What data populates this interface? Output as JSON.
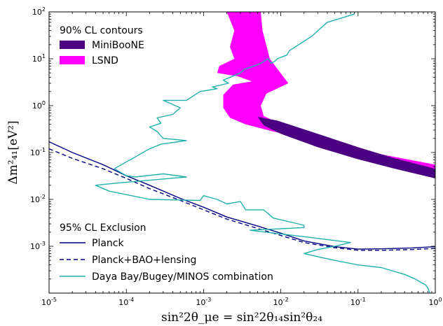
{
  "chart_data": {
    "type": "line",
    "xscale": "log",
    "yscale": "log",
    "xlim": [
      1e-05,
      1
    ],
    "ylim": [
      0.0001,
      100
    ],
    "x_ticks": [
      {
        "value": 1e-05,
        "base": "10",
        "exp": "-5"
      },
      {
        "value": 0.0001,
        "base": "10",
        "exp": "-4"
      },
      {
        "value": 0.001,
        "base": "10",
        "exp": "-3"
      },
      {
        "value": 0.01,
        "base": "10",
        "exp": "-2"
      },
      {
        "value": 0.1,
        "base": "10",
        "exp": "-1"
      },
      {
        "value": 1,
        "base": "10",
        "exp": "0"
      }
    ],
    "y_ticks": [
      {
        "value": 0.001,
        "base": "10",
        "exp": "-3"
      },
      {
        "value": 0.01,
        "base": "10",
        "exp": "-2"
      },
      {
        "value": 0.1,
        "base": "10",
        "exp": "-1"
      },
      {
        "value": 1,
        "base": "10",
        "exp": "0"
      },
      {
        "value": 10,
        "base": "10",
        "exp": "1"
      },
      {
        "value": 100,
        "base": "10",
        "exp": "2"
      }
    ],
    "xlabel": "sin²2θ_μe = sin²2θ₁₄sin²θ₂₄",
    "ylabel": "Δm²₄₁[eV²]",
    "legend_contours": {
      "title": "90% CL contours",
      "placement": "upper-left",
      "entries": [
        {
          "name": "MiniBooNE",
          "color": "#4b0082"
        },
        {
          "name": "LSND",
          "color": "#ff00ff"
        }
      ]
    },
    "legend_exclusion": {
      "title": "95% CL Exclusion",
      "placement": "lower-left",
      "entries": [
        {
          "name": "Planck",
          "color": "#000080",
          "style": "solid"
        },
        {
          "name": "Planck+BAO+lensing",
          "color": "#000080",
          "style": "dashed"
        },
        {
          "name": "Daya Bay/Bugey/MINOS combination",
          "color": "#20b2aa",
          "style": "solid"
        }
      ]
    },
    "regions": [
      {
        "name": "LSND",
        "color": "#ff00ff",
        "points": [
          [
            0.002,
            100
          ],
          [
            0.0055,
            100
          ],
          [
            0.0058,
            40
          ],
          [
            0.0072,
            10
          ],
          [
            0.0125,
            3
          ],
          [
            0.0065,
            1.8
          ],
          [
            0.0055,
            1
          ],
          [
            0.006,
            0.6
          ],
          [
            0.012,
            0.35
          ],
          [
            0.05,
            0.15
          ],
          [
            0.15,
            0.1
          ],
          [
            1,
            0.055
          ],
          [
            1,
            0.04
          ],
          [
            0.3,
            0.07
          ],
          [
            0.08,
            0.12
          ],
          [
            0.02,
            0.2
          ],
          [
            0.008,
            0.28
          ],
          [
            0.0035,
            0.4
          ],
          [
            0.0022,
            0.55
          ],
          [
            0.0018,
            0.9
          ],
          [
            0.0018,
            1.7
          ],
          [
            0.0024,
            2.8
          ],
          [
            0.0042,
            3.3
          ],
          [
            0.0028,
            4.2
          ],
          [
            0.0015,
            5
          ],
          [
            0.0016,
            7
          ],
          [
            0.0025,
            10
          ],
          [
            0.0022,
            18
          ],
          [
            0.0025,
            40
          ],
          [
            0.002,
            100
          ]
        ]
      },
      {
        "name": "MiniBooNE",
        "color": "#4b0082",
        "points": [
          [
            0.005,
            0.58
          ],
          [
            0.009,
            0.48
          ],
          [
            0.03,
            0.25
          ],
          [
            0.1,
            0.13
          ],
          [
            0.3,
            0.075
          ],
          [
            1,
            0.045
          ],
          [
            1,
            0.028
          ],
          [
            0.3,
            0.045
          ],
          [
            0.1,
            0.072
          ],
          [
            0.03,
            0.13
          ],
          [
            0.01,
            0.25
          ],
          [
            0.006,
            0.38
          ],
          [
            0.005,
            0.58
          ]
        ]
      }
    ],
    "series": [
      {
        "name": "Planck",
        "style": "solid",
        "color": "#000080",
        "x": [
          1e-05,
          2e-05,
          5e-05,
          0.0001,
          0.0002,
          0.0005,
          0.001,
          0.002,
          0.005,
          0.01,
          0.02,
          0.05,
          0.1,
          0.2,
          0.5,
          1
        ],
        "y": [
          0.17,
          0.1,
          0.055,
          0.032,
          0.02,
          0.0105,
          0.0068,
          0.0042,
          0.0027,
          0.0019,
          0.0013,
          0.00098,
          0.00087,
          0.00088,
          0.00092,
          0.00098
        ]
      },
      {
        "name": "Planck+BAO+lensing",
        "style": "dashed",
        "color": "#000080",
        "x": [
          1e-05,
          2e-05,
          5e-05,
          0.0001,
          0.0002,
          0.0005,
          0.001,
          0.002,
          0.005,
          0.01,
          0.02,
          0.05,
          0.1,
          0.2,
          0.5,
          1
        ],
        "y": [
          0.12,
          0.075,
          0.045,
          0.028,
          0.017,
          0.0095,
          0.006,
          0.0038,
          0.0024,
          0.0017,
          0.0012,
          0.00093,
          0.00082,
          0.00082,
          0.00085,
          0.0009
        ]
      },
      {
        "name": "Daya Bay/Bugey/MINOS combination",
        "style": "solid",
        "color": "#20b2aa",
        "x": [
          0.09,
          0.04,
          0.025,
          0.013,
          0.012,
          0.009,
          0.0085,
          0.0075,
          0.0068,
          0.0055,
          0.0045,
          0.0034,
          0.003,
          0.0022,
          0.0018,
          0.0021,
          0.0013,
          0.0015,
          0.0009,
          0.0006,
          0.0003,
          0.0005,
          0.0004,
          0.00025,
          0.00028,
          0.0002,
          0.00025,
          0.0003,
          0.0006,
          0.00028,
          0.0002,
          7e-05,
          0.0001,
          0.00013,
          0.0003,
          0.0006,
          7e-05,
          4e-05,
          6e-05,
          0.0002,
          0.0009,
          0.001,
          0.0015,
          0.002,
          0.003,
          0.0035,
          0.006,
          0.008,
          0.02,
          0.02,
          0.004,
          0.005,
          0.02,
          0.08,
          0.05,
          0.03,
          0.02,
          0.03,
          0.05,
          0.1,
          0.2,
          0.4,
          0.55,
          0.65,
          0.75,
          0.8,
          0.85
        ],
        "y": [
          90,
          60,
          30,
          15,
          12,
          10,
          9,
          8,
          10,
          8,
          7,
          6,
          5,
          4,
          3.5,
          3,
          2.5,
          2.3,
          2,
          1.3,
          1.3,
          0.9,
          0.65,
          0.55,
          0.42,
          0.35,
          0.28,
          0.2,
          0.18,
          0.15,
          0.12,
          0.045,
          0.032,
          0.03,
          0.035,
          0.03,
          0.022,
          0.02,
          0.015,
          0.01,
          0.0095,
          0.012,
          0.01,
          0.008,
          0.009,
          0.006,
          0.006,
          0.004,
          0.0028,
          0.0025,
          0.0022,
          0.0021,
          0.0016,
          0.0012,
          0.001,
          0.00085,
          0.0007,
          0.0006,
          0.0005,
          0.0004,
          0.00035,
          0.00025,
          0.0002,
          0.00017,
          0.00015,
          0.00013,
          0.0001
        ]
      }
    ]
  }
}
